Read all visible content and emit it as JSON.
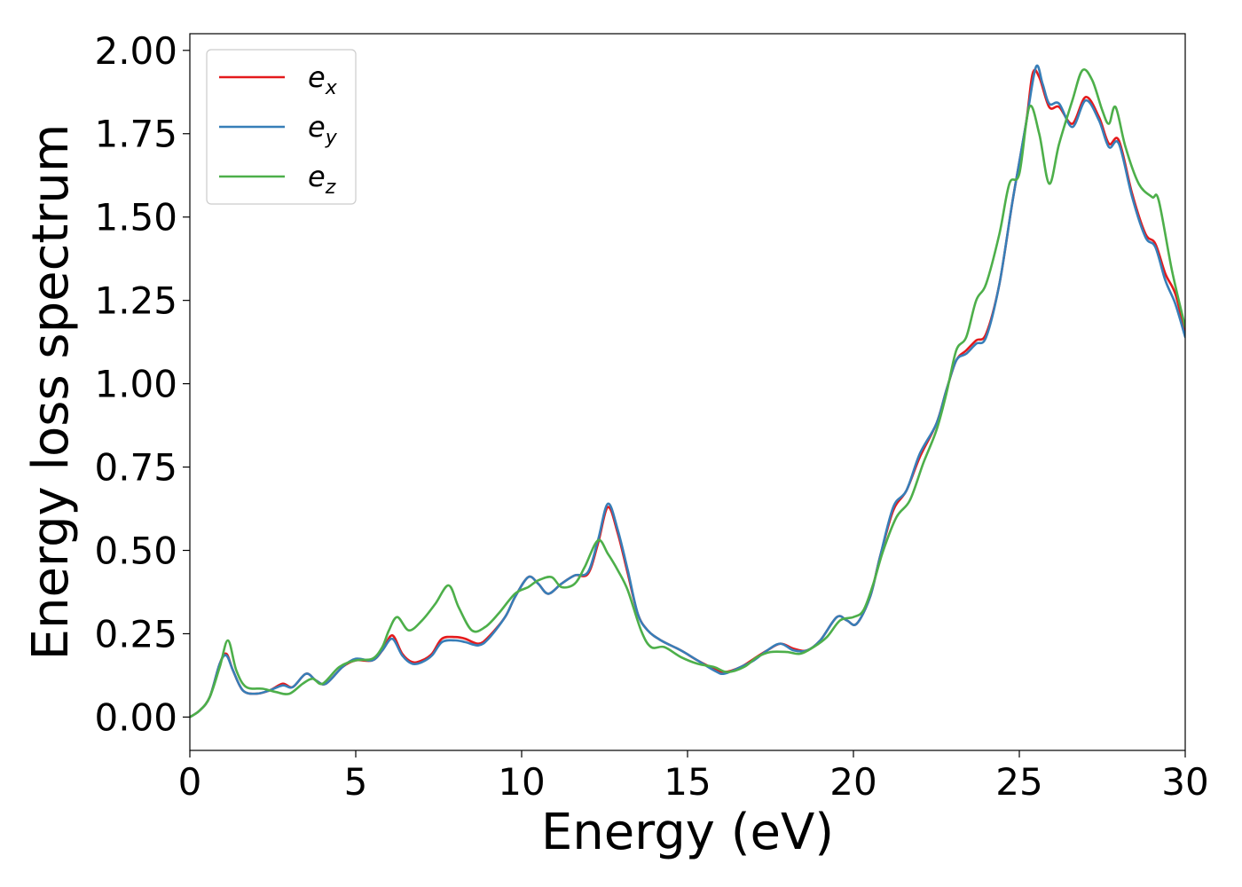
{
  "chart_data": {
    "type": "line",
    "title": "",
    "xlabel": "Energy (eV)",
    "ylabel": "Energy loss spectrum",
    "xlim": [
      0,
      30
    ],
    "ylim": [
      -0.1,
      2.05
    ],
    "xticks": [
      0,
      5,
      10,
      15,
      20,
      25,
      30
    ],
    "xtick_labels": [
      "0",
      "5",
      "10",
      "15",
      "20",
      "25",
      "30"
    ],
    "yticks": [
      0.0,
      0.25,
      0.5,
      0.75,
      1.0,
      1.25,
      1.5,
      1.75,
      2.0
    ],
    "ytick_labels": [
      "0.00",
      "0.25",
      "0.50",
      "0.75",
      "1.00",
      "1.25",
      "1.50",
      "1.75",
      "2.00"
    ],
    "grid": false,
    "legend_position": "top-left",
    "series": [
      {
        "name": "e_x",
        "base": "e",
        "sub": "x",
        "color": "#e41a1c",
        "points": [
          [
            0,
            0.0
          ],
          [
            0.3,
            0.02
          ],
          [
            0.6,
            0.06
          ],
          [
            0.9,
            0.16
          ],
          [
            1.1,
            0.19
          ],
          [
            1.3,
            0.14
          ],
          [
            1.6,
            0.08
          ],
          [
            2.0,
            0.07
          ],
          [
            2.4,
            0.08
          ],
          [
            2.8,
            0.1
          ],
          [
            3.1,
            0.09
          ],
          [
            3.5,
            0.13
          ],
          [
            3.8,
            0.11
          ],
          [
            4.1,
            0.1
          ],
          [
            4.6,
            0.15
          ],
          [
            5.0,
            0.17
          ],
          [
            5.5,
            0.17
          ],
          [
            5.8,
            0.2
          ],
          [
            6.1,
            0.245
          ],
          [
            6.4,
            0.19
          ],
          [
            6.7,
            0.165
          ],
          [
            7.0,
            0.17
          ],
          [
            7.3,
            0.19
          ],
          [
            7.6,
            0.235
          ],
          [
            8.0,
            0.24
          ],
          [
            8.3,
            0.235
          ],
          [
            8.7,
            0.22
          ],
          [
            9.0,
            0.24
          ],
          [
            9.5,
            0.3
          ],
          [
            9.8,
            0.36
          ],
          [
            10.2,
            0.42
          ],
          [
            10.5,
            0.4
          ],
          [
            10.8,
            0.37
          ],
          [
            11.2,
            0.4
          ],
          [
            11.6,
            0.425
          ],
          [
            12.0,
            0.43
          ],
          [
            12.3,
            0.52
          ],
          [
            12.6,
            0.63
          ],
          [
            12.9,
            0.55
          ],
          [
            13.2,
            0.43
          ],
          [
            13.5,
            0.31
          ],
          [
            13.8,
            0.26
          ],
          [
            14.2,
            0.23
          ],
          [
            14.8,
            0.2
          ],
          [
            15.3,
            0.17
          ],
          [
            15.8,
            0.145
          ],
          [
            16.1,
            0.135
          ],
          [
            16.6,
            0.15
          ],
          [
            17.0,
            0.175
          ],
          [
            17.4,
            0.2
          ],
          [
            17.8,
            0.22
          ],
          [
            18.2,
            0.205
          ],
          [
            18.6,
            0.2
          ],
          [
            19.0,
            0.23
          ],
          [
            19.5,
            0.3
          ],
          [
            19.8,
            0.29
          ],
          [
            20.1,
            0.28
          ],
          [
            20.5,
            0.36
          ],
          [
            20.8,
            0.48
          ],
          [
            21.2,
            0.62
          ],
          [
            21.6,
            0.68
          ],
          [
            22.0,
            0.78
          ],
          [
            22.5,
            0.88
          ],
          [
            22.8,
            0.98
          ],
          [
            23.1,
            1.07
          ],
          [
            23.4,
            1.1
          ],
          [
            23.7,
            1.13
          ],
          [
            24.0,
            1.15
          ],
          [
            24.4,
            1.3
          ],
          [
            24.8,
            1.55
          ],
          [
            25.2,
            1.78
          ],
          [
            25.4,
            1.93
          ],
          [
            25.6,
            1.92
          ],
          [
            25.9,
            1.83
          ],
          [
            26.2,
            1.83
          ],
          [
            26.6,
            1.78
          ],
          [
            27.0,
            1.86
          ],
          [
            27.4,
            1.8
          ],
          [
            27.7,
            1.72
          ],
          [
            28.0,
            1.73
          ],
          [
            28.4,
            1.57
          ],
          [
            28.8,
            1.45
          ],
          [
            29.1,
            1.42
          ],
          [
            29.4,
            1.33
          ],
          [
            29.7,
            1.27
          ],
          [
            30.0,
            1.15
          ]
        ]
      },
      {
        "name": "e_y",
        "base": "e",
        "sub": "y",
        "color": "#377eb8",
        "points": [
          [
            0,
            0.0
          ],
          [
            0.3,
            0.02
          ],
          [
            0.6,
            0.06
          ],
          [
            0.9,
            0.16
          ],
          [
            1.1,
            0.185
          ],
          [
            1.3,
            0.14
          ],
          [
            1.6,
            0.08
          ],
          [
            2.0,
            0.07
          ],
          [
            2.4,
            0.08
          ],
          [
            2.8,
            0.095
          ],
          [
            3.1,
            0.09
          ],
          [
            3.5,
            0.13
          ],
          [
            3.8,
            0.11
          ],
          [
            4.1,
            0.1
          ],
          [
            4.6,
            0.15
          ],
          [
            5.0,
            0.175
          ],
          [
            5.5,
            0.17
          ],
          [
            5.8,
            0.2
          ],
          [
            6.1,
            0.235
          ],
          [
            6.4,
            0.185
          ],
          [
            6.7,
            0.16
          ],
          [
            7.0,
            0.165
          ],
          [
            7.3,
            0.185
          ],
          [
            7.6,
            0.225
          ],
          [
            8.0,
            0.23
          ],
          [
            8.3,
            0.225
          ],
          [
            8.7,
            0.215
          ],
          [
            9.0,
            0.235
          ],
          [
            9.5,
            0.3
          ],
          [
            9.8,
            0.36
          ],
          [
            10.2,
            0.42
          ],
          [
            10.5,
            0.4
          ],
          [
            10.8,
            0.37
          ],
          [
            11.2,
            0.4
          ],
          [
            11.6,
            0.425
          ],
          [
            12.0,
            0.435
          ],
          [
            12.3,
            0.53
          ],
          [
            12.6,
            0.64
          ],
          [
            12.9,
            0.56
          ],
          [
            13.2,
            0.44
          ],
          [
            13.5,
            0.31
          ],
          [
            13.8,
            0.26
          ],
          [
            14.2,
            0.23
          ],
          [
            14.8,
            0.2
          ],
          [
            15.3,
            0.17
          ],
          [
            15.8,
            0.14
          ],
          [
            16.1,
            0.13
          ],
          [
            16.6,
            0.15
          ],
          [
            17.0,
            0.17
          ],
          [
            17.4,
            0.2
          ],
          [
            17.8,
            0.22
          ],
          [
            18.2,
            0.2
          ],
          [
            18.6,
            0.2
          ],
          [
            19.0,
            0.23
          ],
          [
            19.5,
            0.3
          ],
          [
            19.8,
            0.29
          ],
          [
            20.1,
            0.28
          ],
          [
            20.5,
            0.36
          ],
          [
            20.8,
            0.48
          ],
          [
            21.2,
            0.63
          ],
          [
            21.6,
            0.68
          ],
          [
            22.0,
            0.79
          ],
          [
            22.5,
            0.88
          ],
          [
            22.8,
            0.98
          ],
          [
            23.1,
            1.07
          ],
          [
            23.4,
            1.09
          ],
          [
            23.7,
            1.12
          ],
          [
            24.0,
            1.14
          ],
          [
            24.4,
            1.3
          ],
          [
            24.8,
            1.55
          ],
          [
            25.2,
            1.78
          ],
          [
            25.5,
            1.95
          ],
          [
            25.7,
            1.9
          ],
          [
            25.9,
            1.84
          ],
          [
            26.2,
            1.84
          ],
          [
            26.6,
            1.77
          ],
          [
            27.0,
            1.85
          ],
          [
            27.4,
            1.79
          ],
          [
            27.7,
            1.71
          ],
          [
            28.0,
            1.72
          ],
          [
            28.4,
            1.56
          ],
          [
            28.8,
            1.44
          ],
          [
            29.1,
            1.41
          ],
          [
            29.4,
            1.31
          ],
          [
            29.7,
            1.24
          ],
          [
            30.0,
            1.14
          ]
        ]
      },
      {
        "name": "e_z",
        "base": "e",
        "sub": "z",
        "color": "#4daf4a",
        "points": [
          [
            0,
            0.0
          ],
          [
            0.3,
            0.02
          ],
          [
            0.6,
            0.06
          ],
          [
            0.9,
            0.15
          ],
          [
            1.15,
            0.23
          ],
          [
            1.4,
            0.14
          ],
          [
            1.7,
            0.09
          ],
          [
            2.2,
            0.085
          ],
          [
            2.6,
            0.075
          ],
          [
            3.0,
            0.07
          ],
          [
            3.4,
            0.1
          ],
          [
            3.7,
            0.115
          ],
          [
            4.0,
            0.1
          ],
          [
            4.5,
            0.15
          ],
          [
            5.0,
            0.17
          ],
          [
            5.5,
            0.175
          ],
          [
            5.8,
            0.21
          ],
          [
            6.0,
            0.26
          ],
          [
            6.25,
            0.3
          ],
          [
            6.6,
            0.26
          ],
          [
            7.0,
            0.29
          ],
          [
            7.4,
            0.34
          ],
          [
            7.8,
            0.395
          ],
          [
            8.1,
            0.33
          ],
          [
            8.5,
            0.26
          ],
          [
            8.9,
            0.27
          ],
          [
            9.3,
            0.31
          ],
          [
            9.8,
            0.37
          ],
          [
            10.2,
            0.39
          ],
          [
            10.5,
            0.41
          ],
          [
            10.9,
            0.42
          ],
          [
            11.2,
            0.39
          ],
          [
            11.6,
            0.4
          ],
          [
            11.9,
            0.45
          ],
          [
            12.3,
            0.53
          ],
          [
            12.6,
            0.49
          ],
          [
            12.9,
            0.44
          ],
          [
            13.2,
            0.38
          ],
          [
            13.6,
            0.26
          ],
          [
            13.9,
            0.21
          ],
          [
            14.3,
            0.21
          ],
          [
            14.8,
            0.18
          ],
          [
            15.3,
            0.16
          ],
          [
            15.8,
            0.15
          ],
          [
            16.2,
            0.135
          ],
          [
            16.7,
            0.15
          ],
          [
            17.1,
            0.18
          ],
          [
            17.5,
            0.195
          ],
          [
            18.0,
            0.195
          ],
          [
            18.4,
            0.19
          ],
          [
            18.8,
            0.21
          ],
          [
            19.2,
            0.24
          ],
          [
            19.6,
            0.29
          ],
          [
            20.0,
            0.3
          ],
          [
            20.3,
            0.32
          ],
          [
            20.6,
            0.4
          ],
          [
            20.9,
            0.5
          ],
          [
            21.3,
            0.6
          ],
          [
            21.7,
            0.65
          ],
          [
            22.1,
            0.76
          ],
          [
            22.5,
            0.86
          ],
          [
            22.8,
            0.97
          ],
          [
            23.1,
            1.1
          ],
          [
            23.4,
            1.14
          ],
          [
            23.7,
            1.25
          ],
          [
            24.0,
            1.3
          ],
          [
            24.4,
            1.45
          ],
          [
            24.7,
            1.6
          ],
          [
            25.0,
            1.63
          ],
          [
            25.3,
            1.83
          ],
          [
            25.6,
            1.75
          ],
          [
            25.9,
            1.6
          ],
          [
            26.2,
            1.72
          ],
          [
            26.6,
            1.85
          ],
          [
            26.9,
            1.94
          ],
          [
            27.2,
            1.91
          ],
          [
            27.5,
            1.82
          ],
          [
            27.7,
            1.78
          ],
          [
            27.9,
            1.83
          ],
          [
            28.2,
            1.71
          ],
          [
            28.6,
            1.6
          ],
          [
            29.0,
            1.56
          ],
          [
            29.2,
            1.55
          ],
          [
            29.6,
            1.34
          ],
          [
            30.0,
            1.17
          ]
        ]
      }
    ]
  }
}
